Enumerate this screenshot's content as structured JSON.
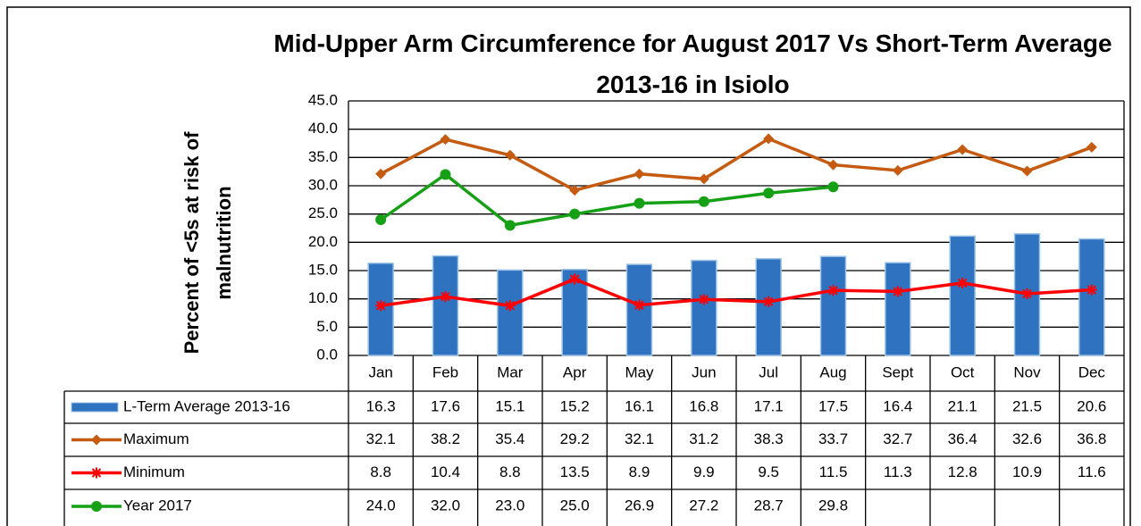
{
  "chart_data": {
    "type": "bar",
    "title": "Mid-Upper Arm Circumference for August 2017 Vs Short-Term Average 2013-16  in Isiolo",
    "y_label": "Percent of <5s at risk of malnutrition",
    "categories": [
      "Jan",
      "Feb",
      "Mar",
      "Apr",
      "May",
      "Jun",
      "Jul",
      "Aug",
      "Sept",
      "Oct",
      "Nov",
      "Dec"
    ],
    "ylim": [
      0,
      45
    ],
    "yticks": [
      {
        "value": 0,
        "label": "0.0"
      },
      {
        "value": 5,
        "label": "5.0"
      },
      {
        "value": 10,
        "label": "10.0"
      },
      {
        "value": 15,
        "label": "15.0"
      },
      {
        "value": 20,
        "label": "20.0"
      },
      {
        "value": 25,
        "label": "25.0"
      },
      {
        "value": 30,
        "label": "30.0"
      },
      {
        "value": 35,
        "label": "35.0"
      },
      {
        "value": 40,
        "label": "40.0"
      },
      {
        "value": 45,
        "label": "45.0"
      }
    ],
    "grid": true,
    "series": [
      {
        "name": "L-Term Average 2013-16",
        "type": "bar",
        "color": "#2f72c0",
        "values": [
          16.3,
          17.6,
          15.1,
          15.2,
          16.1,
          16.8,
          17.1,
          17.5,
          16.4,
          21.1,
          21.5,
          20.6
        ],
        "value_labels": [
          "16.3",
          "17.6",
          "15.1",
          "15.2",
          "16.1",
          "16.8",
          "17.1",
          "17.5",
          "16.4",
          "21.1",
          "21.5",
          "20.6"
        ]
      },
      {
        "name": "Maximum",
        "type": "line",
        "marker": "diamond",
        "color": "#c55a11",
        "values": [
          32.1,
          38.2,
          35.4,
          29.2,
          32.1,
          31.2,
          38.3,
          33.7,
          32.7,
          36.4,
          32.6,
          36.8
        ],
        "value_labels": [
          "32.1",
          "38.2",
          "35.4",
          "29.2",
          "32.1",
          "31.2",
          "38.3",
          "33.7",
          "32.7",
          "36.4",
          "32.6",
          "36.8"
        ]
      },
      {
        "name": "Minimum",
        "type": "line",
        "marker": "star",
        "color": "#ff0000",
        "values": [
          8.8,
          10.4,
          8.8,
          13.5,
          8.9,
          9.9,
          9.5,
          11.5,
          11.3,
          12.8,
          10.9,
          11.6
        ],
        "value_labels": [
          "8.8",
          "10.4",
          "8.8",
          "13.5",
          "8.9",
          "9.9",
          "9.5",
          "11.5",
          "11.3",
          "12.8",
          "10.9",
          "11.6"
        ]
      },
      {
        "name": "Year 2017",
        "type": "line",
        "marker": "circle",
        "color": "#16a016",
        "values": [
          24,
          32,
          23,
          25,
          26.9,
          27.2,
          28.7,
          29.8,
          null,
          null,
          null,
          null
        ],
        "value_labels": [
          "24.0",
          "32.0",
          "23.0",
          "25.0",
          "26.9",
          "27.2",
          "28.7",
          "29.8",
          null,
          null,
          null,
          null
        ]
      }
    ]
  }
}
